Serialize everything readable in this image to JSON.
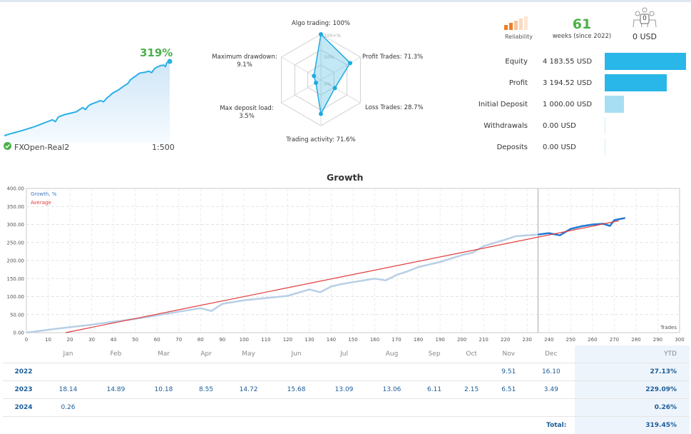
{
  "mini_card": {
    "growth_pct": "319%",
    "account": "FXOpen-Real2",
    "leverage": "1:500"
  },
  "radar": {
    "algo_trading": "Algo trading: 100%",
    "profit_trades": "Profit Trades: 71.3%",
    "loss_trades": "Loss Trades: 28.7%",
    "trading_activity": "Trading activity: 71.6%",
    "max_deposit_load": "Max deposit load:",
    "max_deposit_load_val": "3.5%",
    "max_drawdown": "Maximum drawdown:",
    "max_drawdown_val": "9.1%",
    "ring_100": "100+%",
    "ring_50": "50%",
    "ring_0": "0%",
    "values": {
      "algo": 100,
      "profit": 71.3,
      "loss": 28.7,
      "activity": 71.6,
      "deposit_load": 3.5,
      "drawdown": 9.1
    }
  },
  "stats": {
    "reliability_label": "Reliability",
    "weeks": "61",
    "weeks_label": "weeks (since 2022)",
    "subscribers_usd": "0 USD",
    "subscribers_count": "0",
    "rows": [
      {
        "label": "Equity",
        "value": "4 183.55 USD",
        "amount": 4183.55
      },
      {
        "label": "Profit",
        "value": "3 194.52 USD",
        "amount": 3194.52
      },
      {
        "label": "Initial Deposit",
        "value": "1 000.00 USD",
        "amount": 1000.0
      },
      {
        "label": "Withdrawals",
        "value": "0.00 USD",
        "amount": 0
      },
      {
        "label": "Deposits",
        "value": "0.00 USD",
        "amount": 0
      }
    ],
    "colors": {
      "bar": "#29b6e8",
      "bar_light": "#a8def3",
      "reliability": "#f07e2a"
    }
  },
  "growth_chart": {
    "title": "Growth",
    "legend_growth": "Growth, %",
    "legend_average": "Average",
    "x_axis_label": "Trades",
    "y_ticks": [
      "0.00",
      "50.00",
      "100.00",
      "150.00",
      "200.00",
      "250.00",
      "300.00",
      "350.00",
      "400.00"
    ],
    "x_ticks": [
      "0",
      "10",
      "20",
      "30",
      "40",
      "50",
      "60",
      "70",
      "80",
      "90",
      "100",
      "110",
      "120",
      "130",
      "140",
      "150",
      "160",
      "170",
      "180",
      "190",
      "200",
      "210",
      "220",
      "230",
      "240",
      "250",
      "260",
      "270",
      "280",
      "290",
      "300"
    ]
  },
  "chart_data": {
    "type": "line",
    "title": "Growth",
    "xlabel": "Trades",
    "ylabel": "",
    "xlim": [
      0,
      300
    ],
    "ylim": [
      0,
      400
    ],
    "grid": true,
    "legend_position": "top-left",
    "series": [
      {
        "name": "Growth, %",
        "color": "#b8cfe6",
        "x": [
          0,
          10,
          20,
          30,
          40,
          50,
          60,
          70,
          80,
          85,
          90,
          100,
          110,
          120,
          130,
          135,
          140,
          145,
          150,
          160,
          165,
          170,
          175,
          180,
          190,
          200,
          205,
          210,
          220,
          225,
          235
        ],
        "y": [
          0,
          8,
          15,
          22,
          30,
          38,
          48,
          58,
          68,
          60,
          80,
          90,
          96,
          102,
          120,
          112,
          128,
          135,
          140,
          150,
          145,
          160,
          170,
          182,
          196,
          215,
          222,
          240,
          258,
          268,
          272
        ]
      },
      {
        "name": "Growth, %",
        "color": "#1f7ad6",
        "x": [
          235,
          240,
          245,
          250,
          255,
          260,
          265,
          268,
          270,
          275
        ],
        "y": [
          272,
          276,
          270,
          288,
          295,
          300,
          302,
          296,
          312,
          318
        ]
      },
      {
        "name": "Average",
        "color": "#e23b3b",
        "x": [
          18,
          272
        ],
        "y": [
          0,
          310
        ]
      }
    ]
  },
  "monthly_table": {
    "months": [
      "Jan",
      "Feb",
      "Mar",
      "Apr",
      "May",
      "Jun",
      "Jul",
      "Aug",
      "Sep",
      "Oct",
      "Nov",
      "Dec"
    ],
    "ytd_header": "YTD",
    "rows": [
      {
        "year": "2022",
        "values": [
          "",
          "",
          "",
          "",
          "",
          "",
          "",
          "",
          "",
          "",
          "9.51",
          "16.10"
        ],
        "ytd": "27.13%"
      },
      {
        "year": "2023",
        "values": [
          "18.14",
          "14.89",
          "10.18",
          "8.55",
          "14.72",
          "15.68",
          "13.09",
          "13.06",
          "6.11",
          "2.15",
          "6.51",
          "3.49"
        ],
        "ytd": "229.09%"
      },
      {
        "year": "2024",
        "values": [
          "0.26",
          "",
          "",
          "",
          "",
          "",
          "",
          "",
          "",
          "",
          "",
          ""
        ],
        "ytd": "0.26%"
      }
    ],
    "total_label": "Total:",
    "total_value": "319.45%"
  }
}
